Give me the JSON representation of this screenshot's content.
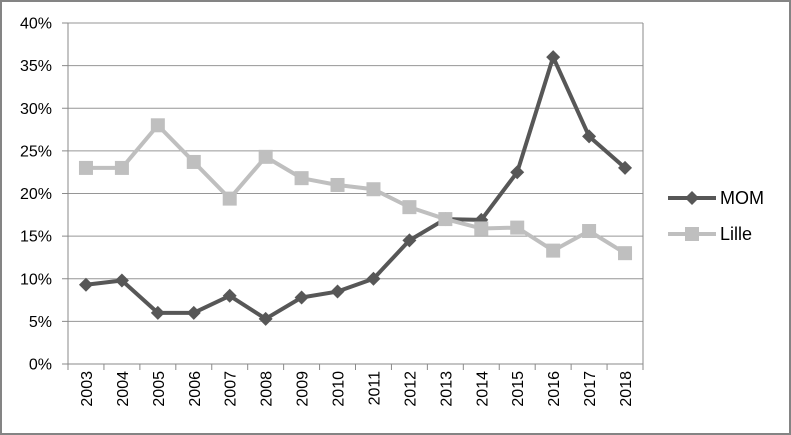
{
  "chart_data": {
    "type": "line",
    "title": "",
    "xlabel": "",
    "ylabel": "",
    "categories": [
      "2003",
      "2004",
      "2005",
      "2006",
      "2007",
      "2008",
      "2009",
      "2010",
      "2011",
      "2012",
      "2013",
      "2014",
      "2015",
      "2016",
      "2017",
      "2018"
    ],
    "series": [
      {
        "name": "MOM",
        "marker": "diamond",
        "color": "#575757",
        "values": [
          9.3,
          9.8,
          6.0,
          6.0,
          8.0,
          5.3,
          7.8,
          8.5,
          10.0,
          14.5,
          17.0,
          16.9,
          22.5,
          36.0,
          26.7,
          23.0
        ]
      },
      {
        "name": "Lille",
        "marker": "square",
        "color": "#bfbfbf",
        "values": [
          23.0,
          23.0,
          28.0,
          23.7,
          19.4,
          24.3,
          21.8,
          21.0,
          20.5,
          18.4,
          17.0,
          15.9,
          16.0,
          13.3,
          15.6,
          13.0
        ]
      }
    ],
    "ylim": [
      0,
      40
    ],
    "ytick_step": 5,
    "ytick_labels": [
      "0%",
      "5%",
      "10%",
      "15%",
      "20%",
      "25%",
      "30%",
      "35%",
      "40%"
    ],
    "grid": true,
    "legend_position": "right",
    "x_label_rotation": -90
  },
  "legend": {
    "items": [
      {
        "label": "MOM"
      },
      {
        "label": "Lille"
      }
    ]
  },
  "colors": {
    "background": "#ffffff",
    "frame_border": "#848484",
    "gridline": "#969696",
    "axis": "#8a8a8a",
    "text": "#000000"
  }
}
